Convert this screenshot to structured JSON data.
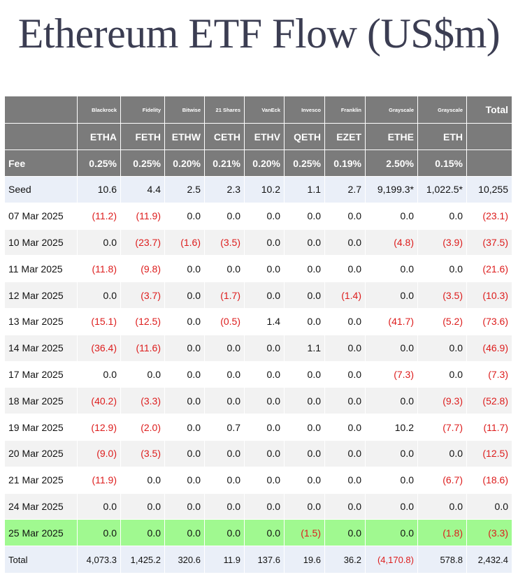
{
  "title": "Ethereum ETF Flow (US$m)",
  "columns": [
    {
      "issuer": "Blackrock",
      "ticker": "ETHA",
      "fee": "0.25%"
    },
    {
      "issuer": "Fidelity",
      "ticker": "FETH",
      "fee": "0.25%"
    },
    {
      "issuer": "Bitwise",
      "ticker": "ETHW",
      "fee": "0.20%"
    },
    {
      "issuer": "21 Shares",
      "ticker": "CETH",
      "fee": "0.21%"
    },
    {
      "issuer": "VanEck",
      "ticker": "ETHV",
      "fee": "0.20%"
    },
    {
      "issuer": "Invesco",
      "ticker": "QETH",
      "fee": "0.25%"
    },
    {
      "issuer": "Franklin",
      "ticker": "EZET",
      "fee": "0.19%"
    },
    {
      "issuer": "Grayscale",
      "ticker": "ETHE",
      "fee": "2.50%"
    },
    {
      "issuer": "Grayscale",
      "ticker": "ETH",
      "fee": "0.15%"
    }
  ],
  "total_header": "Total",
  "fee_label": "Fee",
  "colors": {
    "header_bg": "#7b7b7b",
    "negative": "#dd1c1c",
    "highlight_row": "#a0f990",
    "seed_total_bg": "#eaeff8"
  },
  "chart_data": {
    "type": "table",
    "title": "Ethereum ETF Flow (US$m)",
    "rows": [
      {
        "label": "Seed",
        "values": [
          "10.6",
          "4.4",
          "2.5",
          "2.3",
          "10.2",
          "1.1",
          "2.7",
          "9,199.3*",
          "1,022.5*"
        ],
        "total": "10,255",
        "style": "seed"
      },
      {
        "label": "07 Mar 2025",
        "values": [
          "(11.2)",
          "(11.9)",
          "0.0",
          "0.0",
          "0.0",
          "0.0",
          "0.0",
          "0.0",
          "0.0"
        ],
        "total": "(23.1)",
        "style": "odd"
      },
      {
        "label": "10 Mar 2025",
        "values": [
          "0.0",
          "(23.7)",
          "(1.6)",
          "(3.5)",
          "0.0",
          "0.0",
          "0.0",
          "(4.8)",
          "(3.9)"
        ],
        "total": "(37.5)",
        "style": "even"
      },
      {
        "label": "11 Mar 2025",
        "values": [
          "(11.8)",
          "(9.8)",
          "0.0",
          "0.0",
          "0.0",
          "0.0",
          "0.0",
          "0.0",
          "0.0"
        ],
        "total": "(21.6)",
        "style": "odd"
      },
      {
        "label": "12 Mar 2025",
        "values": [
          "0.0",
          "(3.7)",
          "0.0",
          "(1.7)",
          "0.0",
          "0.0",
          "(1.4)",
          "0.0",
          "(3.5)"
        ],
        "total": "(10.3)",
        "style": "even"
      },
      {
        "label": "13 Mar 2025",
        "values": [
          "(15.1)",
          "(12.5)",
          "0.0",
          "(0.5)",
          "1.4",
          "0.0",
          "0.0",
          "(41.7)",
          "(5.2)"
        ],
        "total": "(73.6)",
        "style": "odd"
      },
      {
        "label": "14 Mar 2025",
        "values": [
          "(36.4)",
          "(11.6)",
          "0.0",
          "0.0",
          "0.0",
          "1.1",
          "0.0",
          "0.0",
          "0.0"
        ],
        "total": "(46.9)",
        "style": "even"
      },
      {
        "label": "17 Mar 2025",
        "values": [
          "0.0",
          "0.0",
          "0.0",
          "0.0",
          "0.0",
          "0.0",
          "0.0",
          "(7.3)",
          "0.0"
        ],
        "total": "(7.3)",
        "style": "odd"
      },
      {
        "label": "18 Mar 2025",
        "values": [
          "(40.2)",
          "(3.3)",
          "0.0",
          "0.0",
          "0.0",
          "0.0",
          "0.0",
          "0.0",
          "(9.3)"
        ],
        "total": "(52.8)",
        "style": "even"
      },
      {
        "label": "19 Mar 2025",
        "values": [
          "(12.9)",
          "(2.0)",
          "0.0",
          "0.7",
          "0.0",
          "0.0",
          "0.0",
          "10.2",
          "(7.7)"
        ],
        "total": "(11.7)",
        "style": "odd"
      },
      {
        "label": "20 Mar 2025",
        "values": [
          "(9.0)",
          "(3.5)",
          "0.0",
          "0.0",
          "0.0",
          "0.0",
          "0.0",
          "0.0",
          "0.0"
        ],
        "total": "(12.5)",
        "style": "even"
      },
      {
        "label": "21 Mar 2025",
        "values": [
          "(11.9)",
          "0.0",
          "0.0",
          "0.0",
          "0.0",
          "0.0",
          "0.0",
          "0.0",
          "(6.7)"
        ],
        "total": "(18.6)",
        "style": "odd"
      },
      {
        "label": "24 Mar 2025",
        "values": [
          "0.0",
          "0.0",
          "0.0",
          "0.0",
          "0.0",
          "0.0",
          "0.0",
          "0.0",
          "0.0"
        ],
        "total": "0.0",
        "style": "even"
      },
      {
        "label": "25 Mar 2025",
        "values": [
          "0.0",
          "0.0",
          "0.0",
          "0.0",
          "0.0",
          "(1.5)",
          "0.0",
          "0.0",
          "(1.8)"
        ],
        "total": "(3.3)",
        "style": "highlight"
      },
      {
        "label": "Total",
        "values": [
          "4,073.3",
          "1,425.2",
          "320.6",
          "11.9",
          "137.6",
          "19.6",
          "36.2",
          "(4,170.8)",
          "578.8"
        ],
        "total": "2,432.4",
        "style": "total"
      }
    ]
  }
}
